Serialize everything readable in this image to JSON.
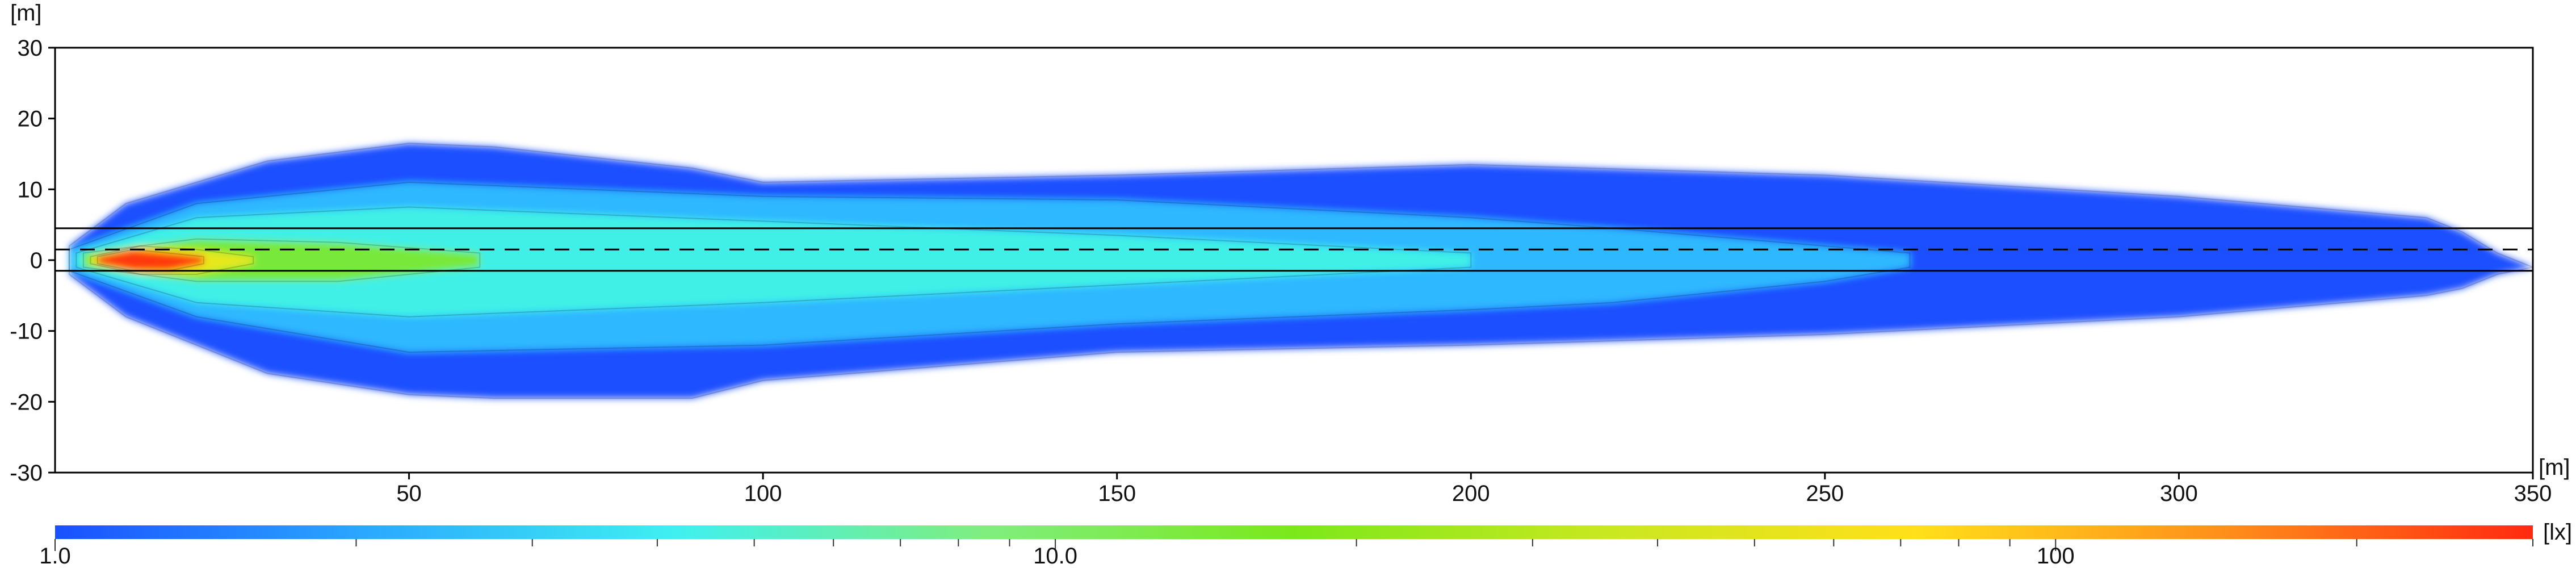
{
  "chart_data": {
    "type": "heatmap",
    "title": "",
    "x_unit_label": "[m]",
    "y_unit_label": "[m]",
    "xlim": [
      0,
      350
    ],
    "ylim": [
      -30,
      30
    ],
    "x_ticks": [
      50,
      100,
      150,
      200,
      250,
      300,
      350
    ],
    "x_tick_labels": [
      "50",
      "100",
      "150",
      "200",
      "250",
      "300",
      "350"
    ],
    "y_ticks": [
      30,
      20,
      10,
      0,
      -10,
      -20,
      -30
    ],
    "y_tick_labels": [
      "30",
      "20",
      "10",
      "0",
      "-10",
      "-20",
      "-30"
    ],
    "grid": false,
    "colorbar": {
      "scale": "log",
      "min": 1.0,
      "max": 300,
      "unit_label": "[lx]",
      "tick_labels": [
        {
          "value": 1.0,
          "label": "1.0"
        },
        {
          "value": 10.0,
          "label": "10.0"
        },
        {
          "value": 100,
          "label": "100"
        }
      ],
      "colors": [
        "#1a50ff",
        "#2aa8ff",
        "#3ff0f0",
        "#7fee80",
        "#7ce81a",
        "#c8e820",
        "#ffe01a",
        "#ff8f1a",
        "#ff2a10"
      ]
    },
    "road_lines": {
      "solid_y": [
        4.5,
        -1.5
      ],
      "dashed_y": [
        1.5
      ]
    },
    "illuminance_envelope": {
      "description_levels_lx": [
        1,
        3,
        5,
        10,
        30,
        100,
        300
      ],
      "outer_1lx": {
        "x": [
          2,
          10,
          30,
          50,
          62,
          90,
          100,
          150,
          200,
          250,
          300,
          335,
          340,
          345,
          350
        ],
        "y_upper": [
          2,
          8,
          14,
          16.5,
          16,
          13,
          11,
          12,
          13.5,
          12,
          9,
          6,
          4,
          1,
          -1
        ],
        "y_lower": [
          -2,
          -8,
          -16,
          -19,
          -19.5,
          -19.5,
          -17,
          -13,
          -12,
          -10.5,
          -8,
          -5,
          -4,
          -2,
          -1
        ]
      },
      "level_3lx": {
        "x": [
          2,
          20,
          50,
          100,
          150,
          200,
          220,
          250,
          262
        ],
        "y_upper": [
          1.5,
          8,
          11,
          9,
          8.5,
          6,
          4.5,
          2,
          1
        ],
        "y_lower": [
          -1.5,
          -8,
          -13,
          -12,
          -9,
          -7,
          -6,
          -3,
          -1
        ]
      },
      "level_10lx": {
        "x": [
          3,
          20,
          50,
          100,
          150,
          200
        ],
        "y_upper": [
          1,
          6,
          7.5,
          5.5,
          3.5,
          1
        ],
        "y_lower": [
          -1,
          -6,
          -8,
          -6,
          -3.5,
          -1
        ]
      },
      "level_30lx": {
        "x": [
          4,
          20,
          40,
          60
        ],
        "y_upper": [
          1,
          3,
          2.5,
          1
        ],
        "y_lower": [
          -1,
          -3,
          -3,
          -1
        ]
      },
      "level_100lx": {
        "x": [
          5,
          12,
          20,
          28
        ],
        "y_upper": [
          0.5,
          2,
          1.5,
          0.5
        ],
        "y_lower": [
          -0.5,
          -2,
          -2,
          -0.5
        ]
      },
      "level_300lx": {
        "x": [
          6,
          11,
          16,
          21
        ],
        "y_upper": [
          0.5,
          1.5,
          1,
          0.5
        ],
        "y_lower": [
          -0.5,
          -1.5,
          -1.5,
          -0.5
        ]
      }
    }
  }
}
